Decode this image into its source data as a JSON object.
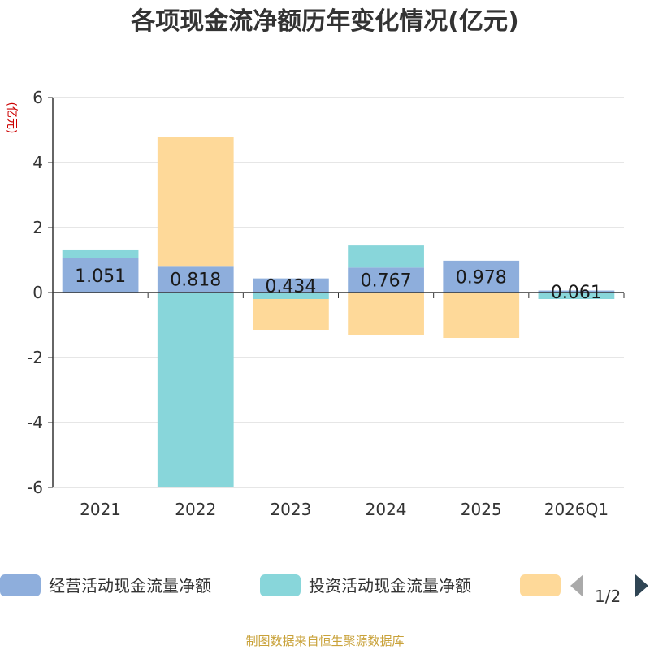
{
  "chart_data": {
    "type": "bar",
    "stacked": true,
    "title": "各项现金流净额历年变化情况(亿元)",
    "ylabel": "(亿元)",
    "xlabel": "",
    "ylim": [
      -6,
      6
    ],
    "yticks": [
      6,
      4,
      2,
      0,
      -2,
      -4,
      -6
    ],
    "grid": true,
    "legend_position": "bottom",
    "categories": [
      "2021",
      "2022",
      "2023",
      "2024",
      "2025",
      "2026Q1"
    ],
    "series": [
      {
        "name": "经营活动现金流量净额",
        "color": "#8eaedc",
        "values": [
          1.051,
          0.818,
          0.434,
          0.767,
          0.978,
          0.061
        ],
        "show_labels": true
      },
      {
        "name": "投资活动现金流量净额",
        "color": "#88d6da",
        "values": [
          0.25,
          -6.0,
          -0.2,
          0.68,
          -0.02,
          -0.2
        ],
        "show_labels": false
      },
      {
        "name": "",
        "color": "#fed999",
        "values": [
          0.0,
          3.96,
          -0.95,
          -1.3,
          -1.38,
          0.0
        ],
        "show_labels": false
      }
    ]
  },
  "legend": {
    "page": "1/2"
  },
  "source_text": "制图数据来自恒生聚源数据库"
}
